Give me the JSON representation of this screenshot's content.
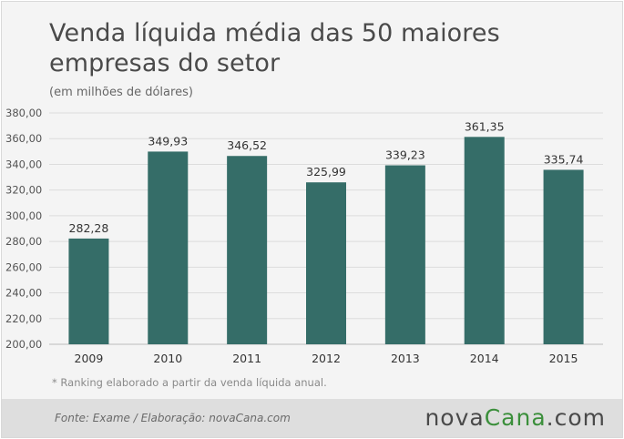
{
  "title": "Venda líquida média das 50 maiores empresas do setor",
  "subtitle": "(em milhões de dólares)",
  "note": "* Ranking elaborado a partir da venda líquida  anual.",
  "source": "Fonte:  Exame  / Elaboração:  novaCana.com",
  "logo": {
    "part1": "nova",
    "part2": "Cana",
    "part3": ".com"
  },
  "colors": {
    "bar": "#356d68",
    "grid": "#dcdcdc",
    "axis_text": "#555555",
    "label_text": "#333333",
    "logo_green": "#3b8f3b"
  },
  "chart_data": {
    "type": "bar",
    "categories": [
      "2009",
      "2010",
      "2011",
      "2012",
      "2013",
      "2014",
      "2015"
    ],
    "values": [
      282.28,
      349.93,
      346.52,
      325.99,
      339.23,
      361.35,
      335.74
    ],
    "value_labels": [
      "282,28",
      "349,93",
      "346,52",
      "325,99",
      "339,23",
      "361,35",
      "335,74"
    ],
    "yticks": [
      "200,00",
      "220,00",
      "240,00",
      "260,00",
      "280,00",
      "300,00",
      "320,00",
      "340,00",
      "360,00",
      "380,00"
    ],
    "ytick_values": [
      200,
      220,
      240,
      260,
      280,
      300,
      320,
      340,
      360,
      380
    ],
    "ylim": [
      200,
      380
    ],
    "grid": true,
    "xlabel": "",
    "ylabel": ""
  }
}
